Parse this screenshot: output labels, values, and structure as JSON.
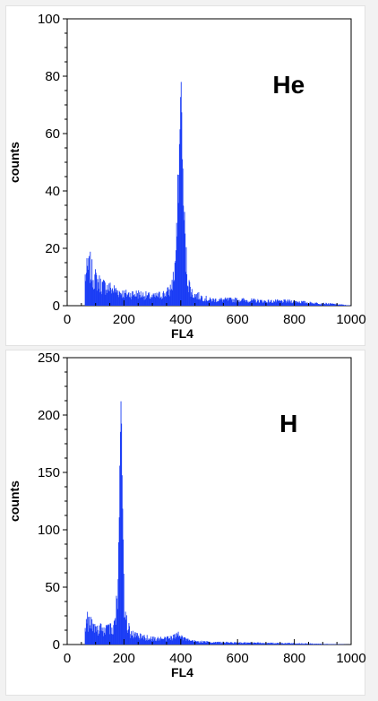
{
  "chart_data": [
    {
      "type": "bar",
      "subtype": "histogram",
      "panel_label": "He",
      "xlabel": "FL4",
      "ylabel": "counts",
      "xlim": [
        0,
        1000
      ],
      "ylim": [
        0,
        100
      ],
      "xticks": [
        "0",
        "200",
        "400",
        "600",
        "800",
        "1000"
      ],
      "yticks": [
        "0",
        "20",
        "40",
        "60",
        "80",
        "100"
      ],
      "color": "#1a3cf5",
      "peak": {
        "x": 400,
        "y": 78
      },
      "profile": [
        [
          60,
          0
        ],
        [
          62,
          10
        ],
        [
          70,
          12
        ],
        [
          80,
          13
        ],
        [
          90,
          10
        ],
        [
          100,
          9
        ],
        [
          120,
          7
        ],
        [
          150,
          6
        ],
        [
          200,
          4
        ],
        [
          250,
          4
        ],
        [
          300,
          3
        ],
        [
          340,
          4
        ],
        [
          360,
          5
        ],
        [
          375,
          10
        ],
        [
          385,
          22
        ],
        [
          392,
          45
        ],
        [
          396,
          65
        ],
        [
          400,
          78
        ],
        [
          404,
          55
        ],
        [
          408,
          35
        ],
        [
          415,
          18
        ],
        [
          425,
          8
        ],
        [
          440,
          4
        ],
        [
          470,
          3
        ],
        [
          500,
          2
        ],
        [
          600,
          2
        ],
        [
          700,
          1.5
        ],
        [
          800,
          1.5
        ],
        [
          850,
          1
        ],
        [
          950,
          0.5
        ],
        [
          1000,
          0
        ]
      ]
    },
    {
      "type": "bar",
      "subtype": "histogram",
      "panel_label": "H",
      "xlabel": "FL4",
      "ylabel": "counts",
      "xlim": [
        0,
        1000
      ],
      "ylim": [
        0,
        250
      ],
      "xticks": [
        "0",
        "200",
        "400",
        "600",
        "800",
        "1000"
      ],
      "yticks": [
        "0",
        "50",
        "100",
        "150",
        "200",
        "250"
      ],
      "color": "#1a3cf5",
      "peak": {
        "x": 188,
        "y": 212
      },
      "profile": [
        [
          60,
          0
        ],
        [
          62,
          18
        ],
        [
          70,
          20
        ],
        [
          80,
          18
        ],
        [
          100,
          14
        ],
        [
          130,
          12
        ],
        [
          160,
          14
        ],
        [
          170,
          22
        ],
        [
          178,
          60
        ],
        [
          183,
          130
        ],
        [
          187,
          200
        ],
        [
          189,
          212
        ],
        [
          192,
          160
        ],
        [
          196,
          90
        ],
        [
          200,
          40
        ],
        [
          208,
          20
        ],
        [
          220,
          10
        ],
        [
          250,
          7
        ],
        [
          300,
          5
        ],
        [
          350,
          5
        ],
        [
          380,
          7
        ],
        [
          395,
          11
        ],
        [
          405,
          6
        ],
        [
          430,
          3
        ],
        [
          500,
          2
        ],
        [
          600,
          1.5
        ],
        [
          800,
          1
        ],
        [
          1000,
          0
        ]
      ]
    }
  ]
}
